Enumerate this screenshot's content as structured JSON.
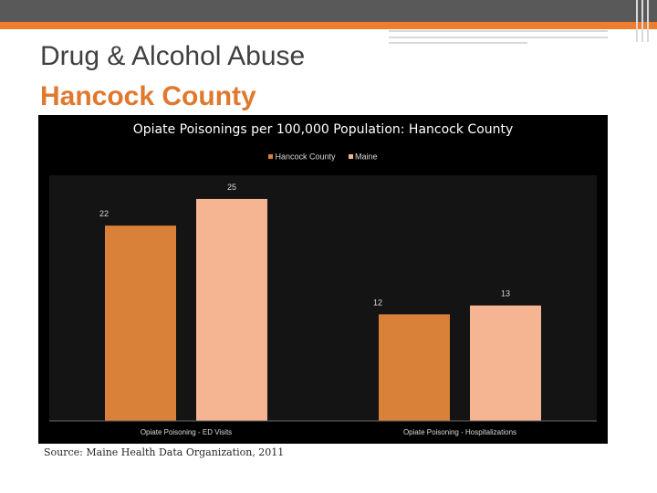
{
  "slide": {
    "title_line1": "Drug & Alcohol Abuse",
    "title_line2": "Hancock County",
    "source": "Source: Maine Health Data Organization, 2011",
    "accent_color": "#f07c2c",
    "header_color": "#595959"
  },
  "chart_data": {
    "type": "bar",
    "title": "Opiate Poisonings per 100,000 Population: Hancock County",
    "categories": [
      "Opiate Poisoning - ED Visits",
      "Opiate Poisoning - Hospitalizations"
    ],
    "series": [
      {
        "name": "Hancock County",
        "values": [
          22,
          12
        ],
        "color": "#d98039"
      },
      {
        "name": "Maine",
        "values": [
          25,
          13
        ],
        "color": "#f6b592"
      }
    ],
    "ylim": [
      0,
      30
    ],
    "grid": false,
    "legend_position": "top",
    "xlabel": "",
    "ylabel": ""
  }
}
